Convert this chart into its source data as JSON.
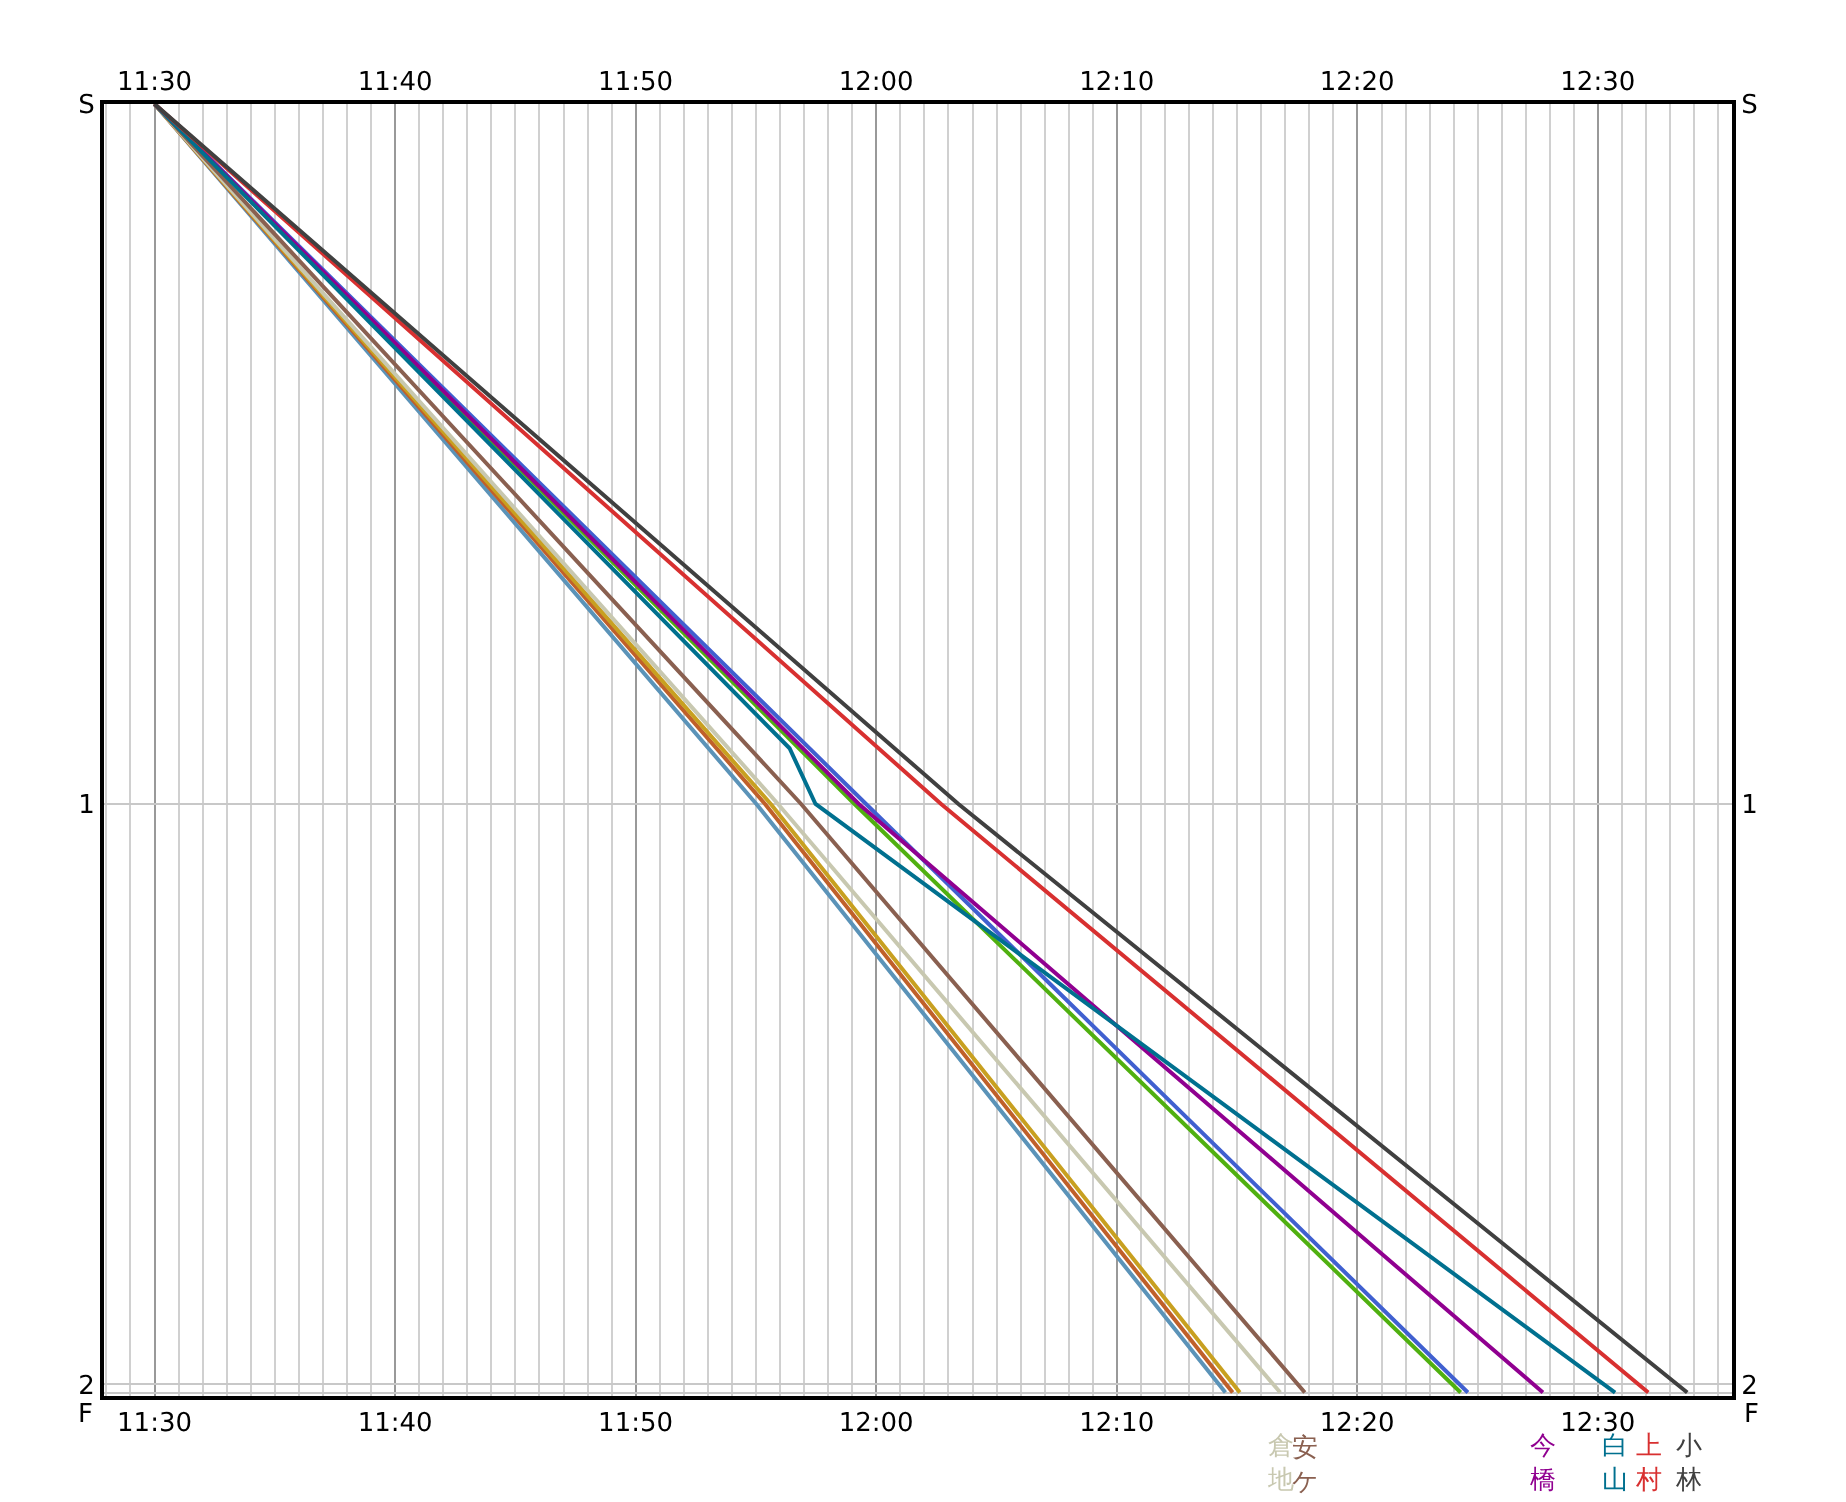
{
  "chart_data": {
    "type": "line",
    "xlim": [
      11.465,
      12.593
    ],
    "ylim": [
      2.02,
      -0.206
    ],
    "xticks": [
      {
        "value": 11.5,
        "label": "11:30"
      },
      {
        "value": 11.6667,
        "label": "11:40"
      },
      {
        "value": 11.8333,
        "label": "11:50"
      },
      {
        "value": 12.0,
        "label": "12:00"
      },
      {
        "value": 12.1667,
        "label": "12:10"
      },
      {
        "value": 12.3333,
        "label": "12:20"
      },
      {
        "value": 12.5,
        "label": "12:30"
      }
    ],
    "x2lim": [
      11.465,
      12.593
    ],
    "x2ticks": [
      {
        "value": 11.5,
        "label": "11:30"
      },
      {
        "value": 11.6667,
        "label": "11:40"
      },
      {
        "value": 11.8333,
        "label": "11:50"
      },
      {
        "value": 12.0,
        "label": "12:00"
      },
      {
        "value": 12.1667,
        "label": "12:10"
      },
      {
        "value": 12.3333,
        "label": "12:20"
      },
      {
        "value": 12.5,
        "label": "12:30"
      }
    ],
    "yticks": [
      {
        "value": -0.206,
        "label": "S"
      },
      1,
      2,
      {
        "value": 2.014,
        "label": null
      }
    ],
    "annotations": [
      "F",
      "F"
    ],
    "y2lim": [
      2.02,
      -0.206
    ],
    "y2ticks": [
      {
        "value": -0.206,
        "label": "S"
      },
      1,
      2,
      {
        "value": 2.014,
        "label": null
      }
    ],
    "grid": true,
    "legend": false,
    "marker": "none",
    "line_style": "solid",
    "series": [
      {
        "color": "#5b93b8",
        "x": [
          11.5,
          11.917,
          12.242
        ],
        "values": [
          -0.206,
          1,
          2.014
        ]
      },
      {
        "color": "#c0602a",
        "x": [
          11.5,
          11.923,
          12.247
        ],
        "values": [
          -0.206,
          1,
          2.014
        ]
      },
      {
        "color": "#c8a020",
        "x": [
          11.5,
          11.927,
          12.252
        ],
        "values": [
          -0.206,
          1,
          2.014
        ]
      },
      {
        "name": "倉地",
        "color": "#c8c8b0",
        "x": [
          11.5,
          11.932,
          12.28
        ],
        "values": [
          -0.206,
          1,
          2.014
        ]
      },
      {
        "name": "安ケ",
        "color": "#8a6050",
        "x": [
          11.5,
          11.948,
          12.297
        ],
        "values": [
          -0.206,
          1,
          2.014
        ]
      },
      {
        "color": "#50b010",
        "x": [
          11.5,
          11.985,
          12.405
        ],
        "values": [
          -0.206,
          1,
          2.014
        ]
      },
      {
        "color": "#4060d0",
        "x": [
          11.5,
          11.993,
          12.41
        ],
        "values": [
          -0.206,
          1,
          2.014
        ]
      },
      {
        "name": "今橋",
        "color": "#900090",
        "x": [
          11.5,
          11.988,
          12.462
        ],
        "values": [
          -0.206,
          1,
          2.014
        ]
      },
      {
        "name": "白山",
        "color": "#00708f",
        "x": [
          11.5,
          11.94,
          11.958,
          12.512
        ],
        "values": [
          -0.206,
          0.904,
          1,
          2.014
        ]
      },
      {
        "name": "上村",
        "color": "#d83030",
        "x": [
          11.5,
          12.045,
          12.535
        ],
        "values": [
          -0.206,
          1,
          2.014
        ]
      },
      {
        "name": "小林",
        "color": "#404040",
        "x": [
          11.5,
          12.057,
          12.562
        ],
        "values": [
          -0.206,
          1,
          2.014
        ]
      }
    ]
  }
}
